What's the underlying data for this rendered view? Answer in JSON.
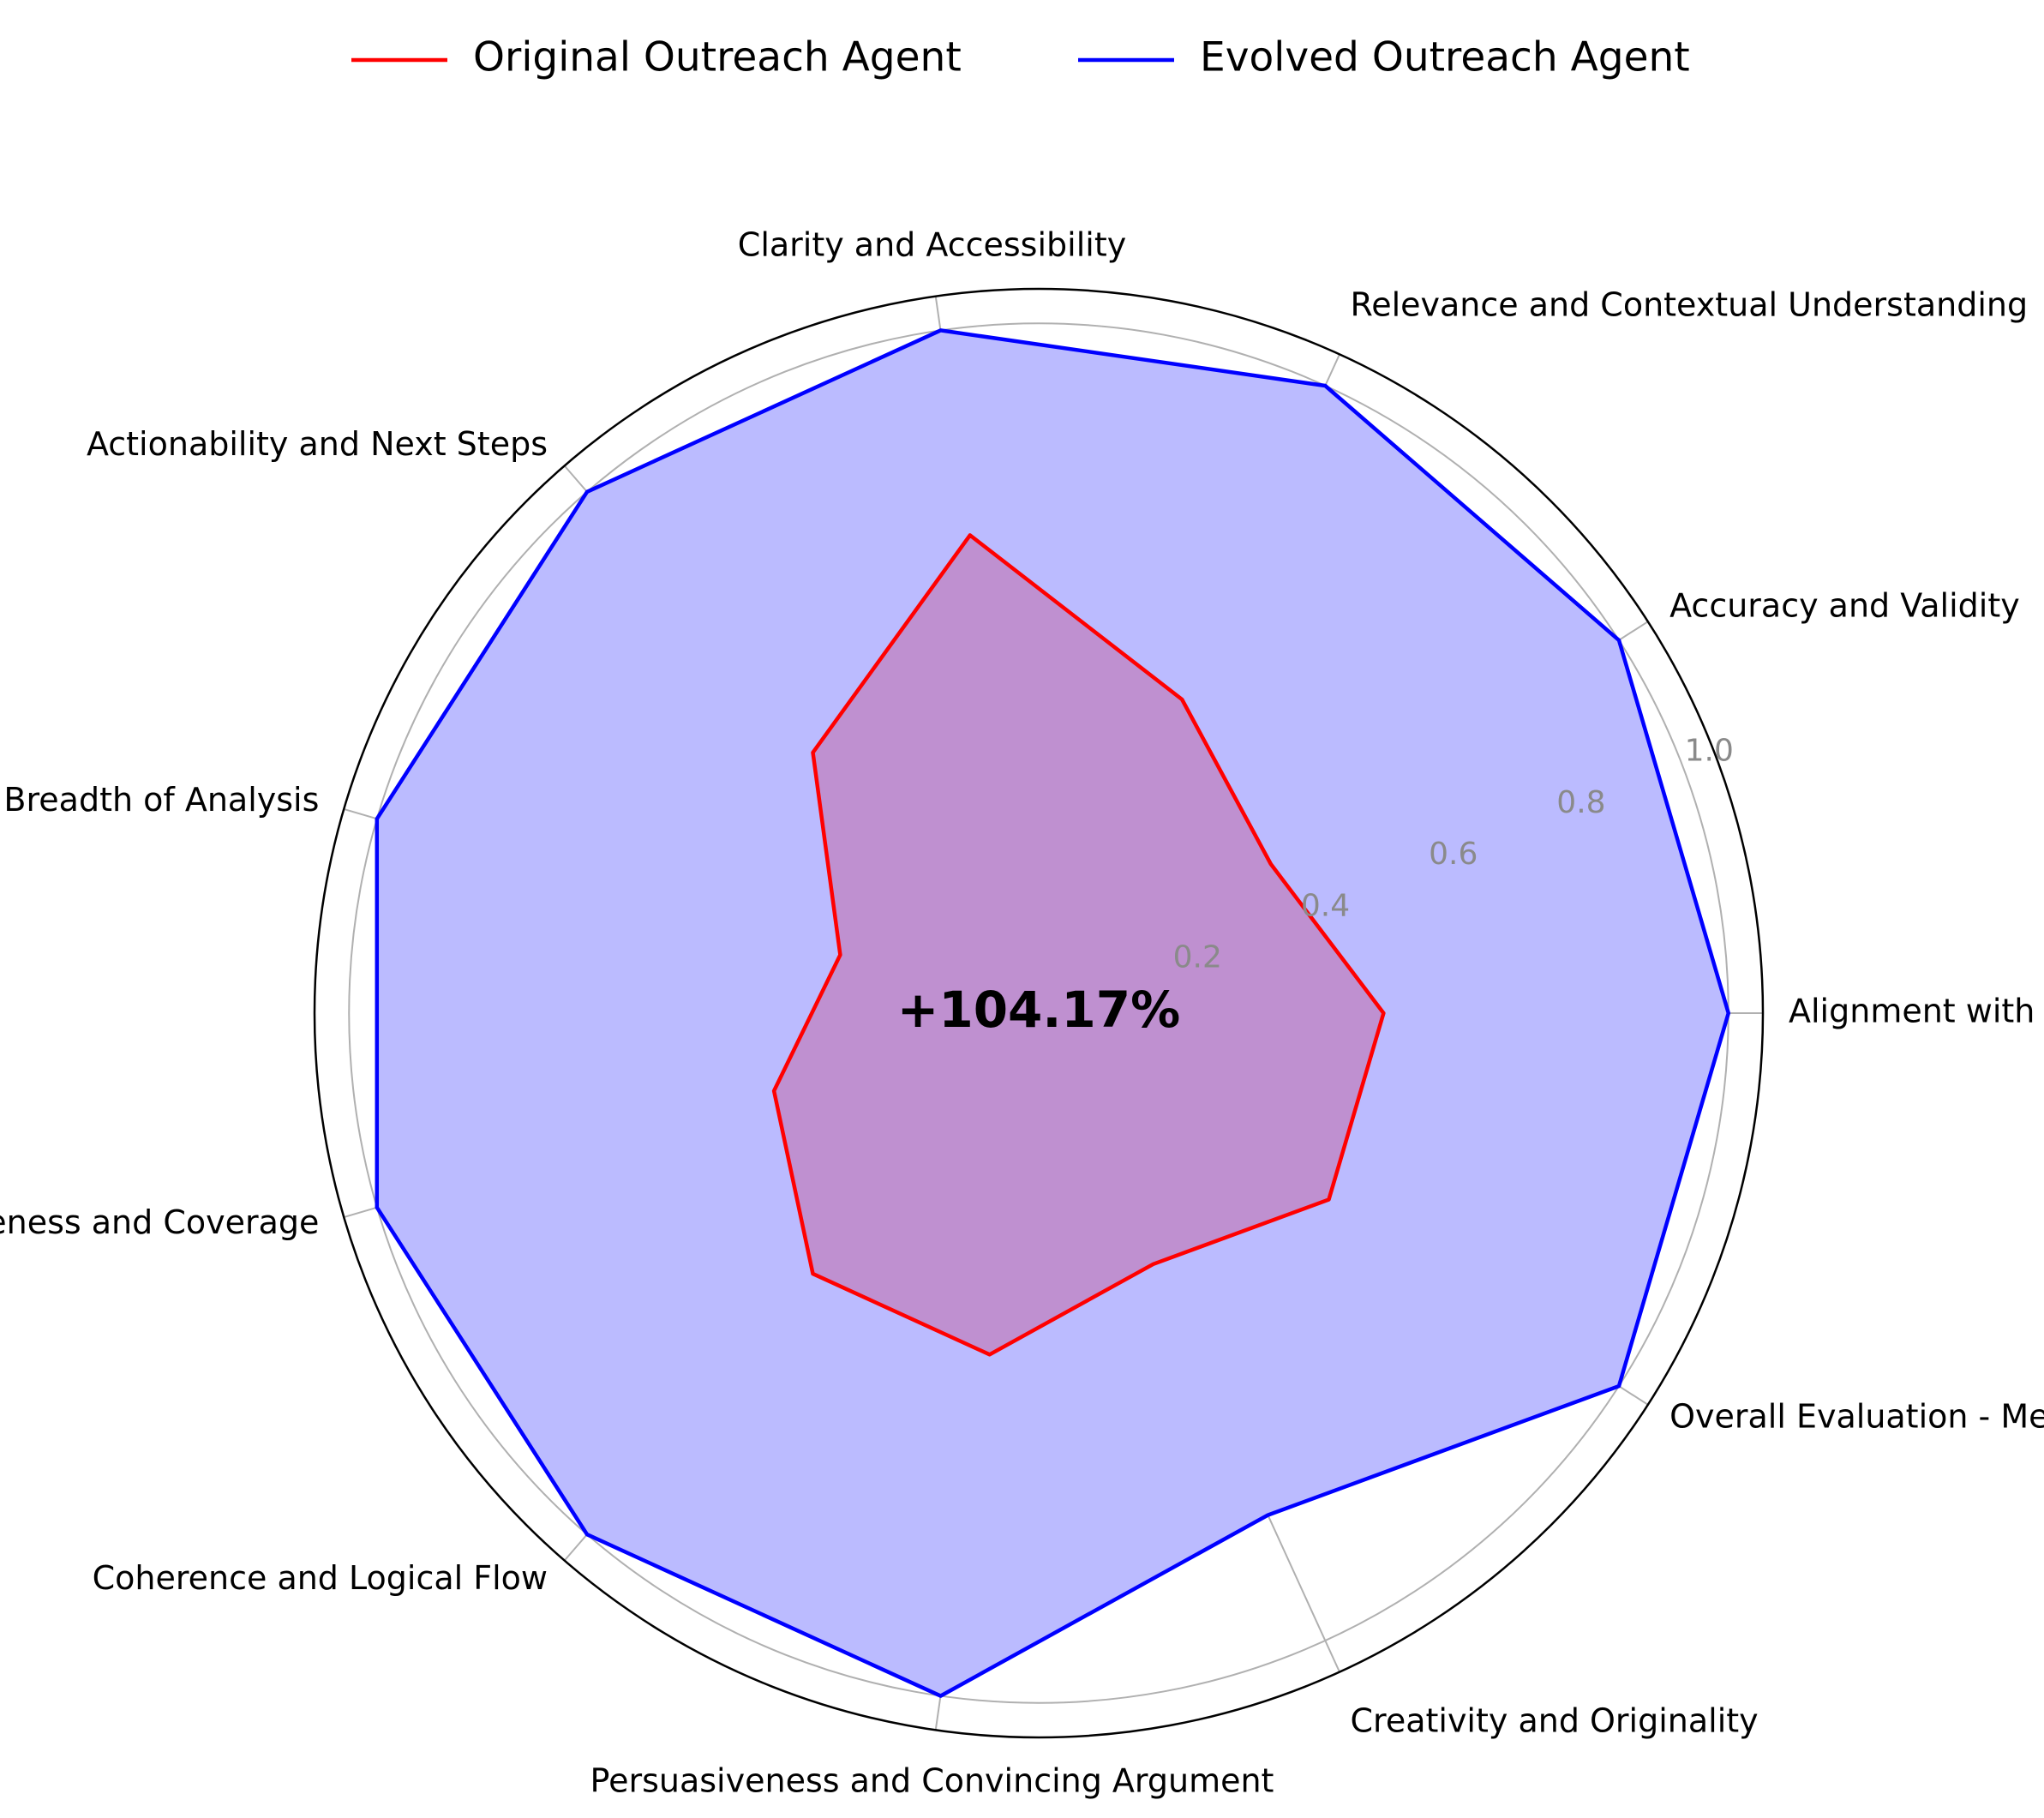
{
  "chart_data": {
    "type": "radar",
    "categories": [
      "Alignment with Purpose",
      "Accuracy and Validity",
      "Relevance and Contextual Understanding",
      "Clarity and Accessibility",
      "Actionability and Next Steps",
      "Depth and Breadth of Analysis",
      "Completeness and Coverage",
      "Coherence and Logical Flow",
      "Persuasiveness and Convincing Argument",
      "Creativity and Originality",
      "Overall Evaluation - Mean Score"
    ],
    "series": [
      {
        "name": "Original Outreach Agent",
        "color": "#ff0000",
        "fill": false,
        "values": [
          0.5,
          0.4,
          0.5,
          0.7,
          0.5,
          0.3,
          0.4,
          0.5,
          0.5,
          0.4,
          0.5
        ]
      },
      {
        "name": "Evolved Outreach Agent",
        "color": "#0000ff",
        "fill": true,
        "values": [
          1.0,
          1.0,
          1.0,
          1.0,
          1.0,
          1.0,
          1.0,
          1.0,
          1.0,
          0.8,
          1.0
        ]
      }
    ],
    "overlap_fill_color": "#bf90d0",
    "evolved_fill_color": "#bbbbff",
    "rlim": [
      0,
      1.05
    ],
    "radial_ticks": [
      0.2,
      0.4,
      0.6,
      0.8,
      1.0
    ],
    "radial_tick_labels": [
      "0.2",
      "0.4",
      "0.6",
      "0.8",
      "1.0"
    ],
    "grid": true,
    "legend_position": "top-center",
    "center_annotation": "+104.17%"
  }
}
